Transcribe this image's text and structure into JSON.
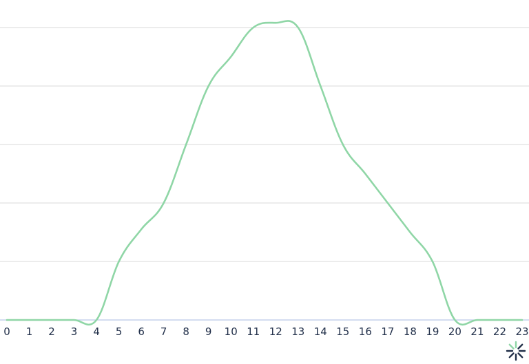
{
  "chart_data": {
    "type": "line",
    "title": "",
    "xlabel": "",
    "ylabel": "",
    "x": [
      0,
      1,
      2,
      3,
      4,
      5,
      6,
      7,
      8,
      9,
      10,
      11,
      12,
      13,
      14,
      15,
      16,
      17,
      18,
      19,
      20,
      21,
      22,
      23
    ],
    "x_tick_labels": [
      "0",
      "1",
      "2",
      "3",
      "4",
      "5",
      "6",
      "7",
      "8",
      "9",
      "10",
      "11",
      "12",
      "13",
      "14",
      "15",
      "16",
      "17",
      "18",
      "19",
      "20",
      "21",
      "22",
      "23"
    ],
    "series": [
      {
        "color": "#8fd6a6",
        "values": [
          0,
          0,
          0,
          0,
          0,
          1.0,
          1.55,
          2.0,
          3.0,
          4.0,
          4.5,
          5.0,
          5.08,
          5.0,
          4.0,
          3.0,
          2.5,
          2.0,
          1.5,
          1.0,
          0,
          0,
          0,
          0
        ]
      }
    ],
    "xlim": [
      0,
      23
    ],
    "ylim": [
      0,
      5
    ],
    "y_gridlines": [
      1,
      2,
      3,
      4,
      5
    ],
    "y_tick_labels_visible": false,
    "grid": true,
    "legend": "none"
  },
  "colors": {
    "gridline": "#d9d9d9",
    "baseline": "#b9c7e6",
    "tick_text": "#22304a",
    "loader_dark": "#1f2d47",
    "loader_accent": "#8fd6a6"
  },
  "icons": {
    "loader": "loading-spinner-icon"
  }
}
